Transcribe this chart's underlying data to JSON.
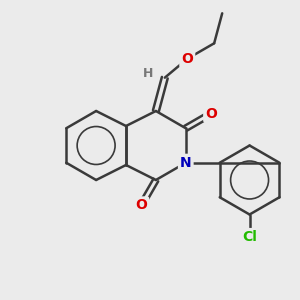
{
  "bg_color": "#ebebeb",
  "bond_color": "#3a3a3a",
  "bond_width": 1.8,
  "atom_colors": {
    "O": "#dd0000",
    "N": "#0000bb",
    "Cl": "#22bb00",
    "H": "#777777",
    "C": "#3a3a3a"
  },
  "font_size": 10,
  "figsize": [
    3.0,
    3.0
  ],
  "dpi": 100
}
